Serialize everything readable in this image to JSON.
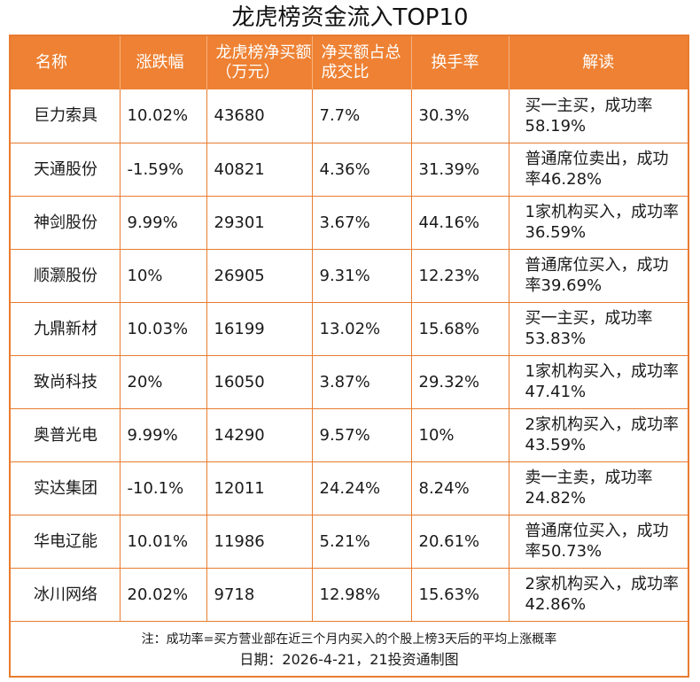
{
  "title": "龙虎榜资金流入TOP10",
  "headers": [
    "名称",
    "涨跌幅",
    "龙虎榜净买额（万元）",
    "净买额占总成交比",
    "换手率",
    "解读"
  ],
  "rows": [
    {
      "name": "巨力索具",
      "change": "10.02%",
      "net_buy": "43680",
      "ratio": "7.7%",
      "turnover": "30.3%",
      "note": "买一主买，成功率58.19%"
    },
    {
      "name": "天通股份",
      "change": "-1.59%",
      "net_buy": "40821",
      "ratio": "4.36%",
      "turnover": "31.39%",
      "note": "普通席位卖出，成功率46.28%"
    },
    {
      "name": "神剑股份",
      "change": "9.99%",
      "net_buy": "29301",
      "ratio": "3.67%",
      "turnover": "44.16%",
      "note": "1家机构买入，成功率36.59%"
    },
    {
      "name": "顺灏股份",
      "change": "10%",
      "net_buy": "26905",
      "ratio": "9.31%",
      "turnover": "12.23%",
      "note": "普通席位买入，成功率39.69%"
    },
    {
      "name": "九鼎新材",
      "change": "10.03%",
      "net_buy": "16199",
      "ratio": "13.02%",
      "turnover": "15.68%",
      "note": "买一主买，成功率53.83%"
    },
    {
      "name": "致尚科技",
      "change": "20%",
      "net_buy": "16050",
      "ratio": "3.87%",
      "turnover": "29.32%",
      "note": "1家机构买入，成功率47.41%"
    },
    {
      "name": "奥普光电",
      "change": "9.99%",
      "net_buy": "14290",
      "ratio": "9.57%",
      "turnover": "10%",
      "note": "2家机构买入，成功率43.59%"
    },
    {
      "name": "实达集团",
      "change": "-10.1%",
      "net_buy": "12011",
      "ratio": "24.24%",
      "turnover": "8.24%",
      "note": "卖一主卖，成功率24.82%"
    },
    {
      "name": "华电辽能",
      "change": "10.01%",
      "net_buy": "11986",
      "ratio": "5.21%",
      "turnover": "20.61%",
      "note": "普通席位买入，成功率50.73%"
    },
    {
      "name": "冰川网络",
      "change": "20.02%",
      "net_buy": "9718",
      "ratio": "12.98%",
      "turnover": "15.63%",
      "note": "2家机构买入，成功率42.86%"
    }
  ],
  "footnote": "注：成功率=买方营业部在近三个月内买入的个股上榜3天后的平均上涨概率",
  "date_line": "日期：2026-4-21，21投资通制图",
  "colors": {
    "accent": "#ee8133",
    "border": "#e87c30"
  }
}
